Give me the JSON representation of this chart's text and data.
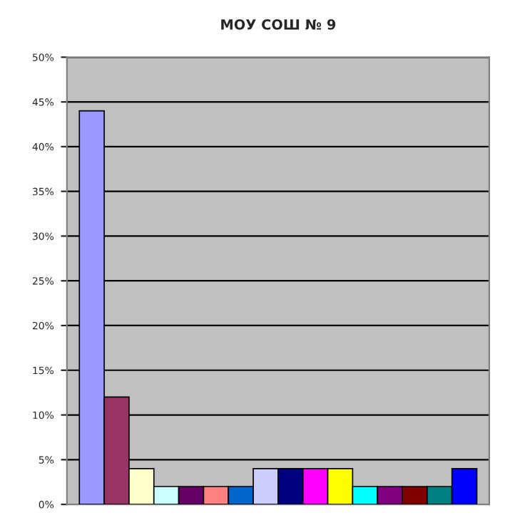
{
  "chart_data": {
    "type": "bar",
    "title": "МОУ СОШ № 9",
    "categories": [
      null,
      null,
      null,
      null,
      null,
      null,
      null,
      null,
      null,
      null,
      null,
      null,
      null,
      null,
      null,
      null
    ],
    "values": [
      44,
      12,
      4,
      2,
      2,
      2,
      2,
      4,
      4,
      4,
      4,
      2,
      2,
      2,
      2,
      4
    ],
    "colors": [
      "#9999ff",
      "#993366",
      "#ffffcc",
      "#ccffff",
      "#660066",
      "#ff8080",
      "#0066cc",
      "#ccccff",
      "#000080",
      "#ff00ff",
      "#ffff00",
      "#00ffff",
      "#800080",
      "#800000",
      "#008080",
      "#0000ff"
    ],
    "ylim": [
      0,
      50
    ],
    "yticks": [
      {
        "value": 0,
        "label": "0%"
      },
      {
        "value": 5,
        "label": "5%"
      },
      {
        "value": 10,
        "label": "10%"
      },
      {
        "value": 15,
        "label": "15%"
      },
      {
        "value": 20,
        "label": "20%"
      },
      {
        "value": 25,
        "label": "25%"
      },
      {
        "value": 30,
        "label": "30%"
      },
      {
        "value": 35,
        "label": "35%"
      },
      {
        "value": 40,
        "label": "40%"
      },
      {
        "value": 45,
        "label": "45%"
      },
      {
        "value": 50,
        "label": "50%"
      }
    ],
    "grid": "y"
  }
}
